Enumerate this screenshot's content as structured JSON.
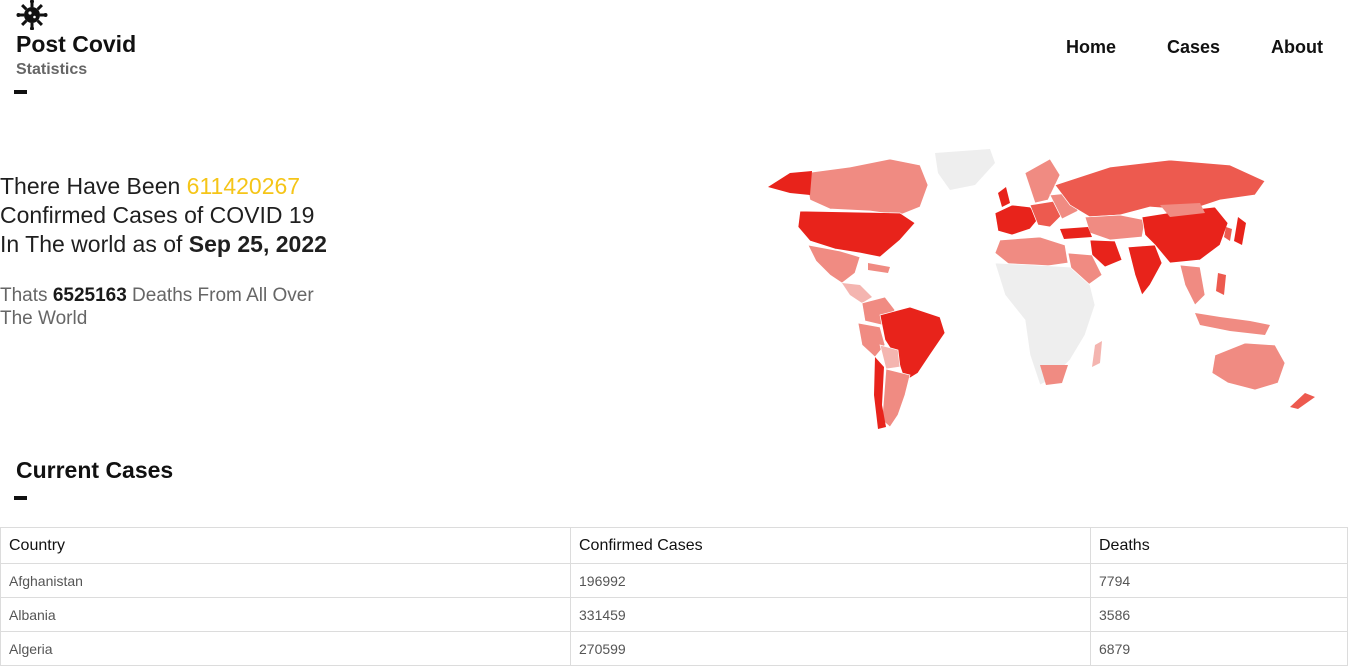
{
  "brand": {
    "title": "Post Covid",
    "subtitle": "Statistics",
    "icon": "virus-icon"
  },
  "nav": [
    {
      "label": "Home"
    },
    {
      "label": "Cases"
    },
    {
      "label": "About"
    }
  ],
  "hero": {
    "line1_prefix": "There Have Been ",
    "confirmed_total": "611420267",
    "line2": "Confirmed Cases of COVID 19",
    "line3_prefix": "In The world as of ",
    "as_of_date": "Sep 25, 2022",
    "deaths_prefix": "Thats ",
    "deaths_total": "6525163",
    "deaths_suffix": " Deaths From All Over The World"
  },
  "colors": {
    "accent": "#f5c518",
    "map_high": "#e8231b",
    "map_mid": "#ed5a4f",
    "map_low": "#f08b82",
    "map_lowest": "#f4b5b0",
    "map_none": "#eeeeee"
  },
  "map": {
    "alt": "World map"
  },
  "cases_section": {
    "title": "Current Cases",
    "columns": [
      "Country",
      "Confirmed Cases",
      "Deaths"
    ],
    "rows": [
      {
        "country": "Afghanistan",
        "confirmed": "196992",
        "deaths": "7794"
      },
      {
        "country": "Albania",
        "confirmed": "331459",
        "deaths": "3586"
      },
      {
        "country": "Algeria",
        "confirmed": "270599",
        "deaths": "6879"
      }
    ]
  }
}
